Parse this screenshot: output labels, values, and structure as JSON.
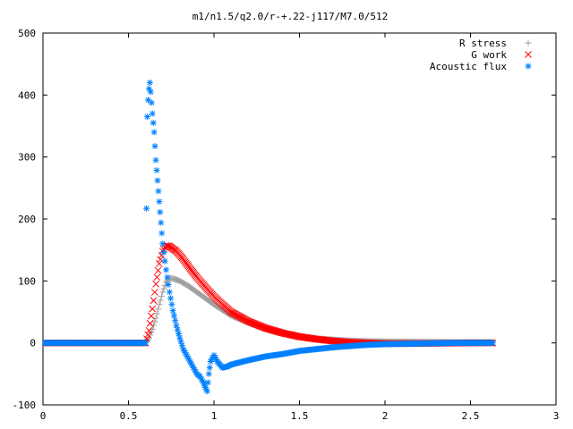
{
  "chart_data": {
    "type": "scatter",
    "title": "m1/n1.5/q2.0/r-+.22-j117/M7.0/512",
    "xlabel": "",
    "ylabel": "",
    "xlim": [
      0,
      3
    ],
    "ylim": [
      -100,
      500
    ],
    "xticks": [
      0,
      0.5,
      1,
      1.5,
      2,
      2.5,
      3
    ],
    "xtick_labels": [
      "0",
      "0.5",
      "1",
      "1.5",
      "2",
      "2.5",
      "3"
    ],
    "yticks": [
      -100,
      0,
      100,
      200,
      300,
      400,
      500
    ],
    "ytick_labels": [
      "-100",
      "0",
      "100",
      "200",
      "300",
      "400",
      "500"
    ],
    "grid": false,
    "legend_position": "top-right",
    "series": [
      {
        "name": "R stress",
        "marker": "plus",
        "color": "#a0a0a0",
        "points": [
          [
            0,
            0
          ],
          [
            0.3,
            0
          ],
          [
            0.58,
            0
          ],
          [
            0.6,
            2
          ],
          [
            0.62,
            8
          ],
          [
            0.64,
            22
          ],
          [
            0.66,
            40
          ],
          [
            0.68,
            62
          ],
          [
            0.7,
            82
          ],
          [
            0.72,
            98
          ],
          [
            0.74,
            104
          ],
          [
            0.76,
            104
          ],
          [
            0.8,
            100
          ],
          [
            0.85,
            92
          ],
          [
            0.9,
            82
          ],
          [
            0.95,
            72
          ],
          [
            1.0,
            62
          ],
          [
            1.05,
            53
          ],
          [
            1.1,
            44
          ],
          [
            1.2,
            33
          ],
          [
            1.3,
            23
          ],
          [
            1.4,
            16
          ],
          [
            1.5,
            11
          ],
          [
            1.6,
            7
          ],
          [
            1.7,
            5
          ],
          [
            1.8,
            3.5
          ],
          [
            1.9,
            2.5
          ],
          [
            2.0,
            2
          ],
          [
            2.2,
            1.5
          ],
          [
            2.4,
            1
          ],
          [
            2.63,
            1
          ]
        ]
      },
      {
        "name": "G work",
        "marker": "cross",
        "color": "#ff0000",
        "points": [
          [
            0,
            0
          ],
          [
            0.3,
            0
          ],
          [
            0.6,
            0
          ],
          [
            0.62,
            20
          ],
          [
            0.64,
            55
          ],
          [
            0.66,
            95
          ],
          [
            0.68,
            128
          ],
          [
            0.7,
            148
          ],
          [
            0.72,
            157
          ],
          [
            0.74,
            156
          ],
          [
            0.78,
            148
          ],
          [
            0.82,
            135
          ],
          [
            0.86,
            120
          ],
          [
            0.9,
            106
          ],
          [
            0.95,
            90
          ],
          [
            1.0,
            75
          ],
          [
            1.05,
            62
          ],
          [
            1.1,
            50
          ],
          [
            1.2,
            35
          ],
          [
            1.3,
            24
          ],
          [
            1.4,
            16
          ],
          [
            1.5,
            10
          ],
          [
            1.6,
            6
          ],
          [
            1.7,
            3
          ],
          [
            1.8,
            1
          ],
          [
            1.9,
            0
          ],
          [
            2.0,
            -1
          ],
          [
            2.2,
            -1
          ],
          [
            2.5,
            0
          ],
          [
            2.63,
            0
          ]
        ]
      },
      {
        "name": "Acoustic flux",
        "marker": "star",
        "color": "#0080ff",
        "points": [
          [
            0,
            0
          ],
          [
            0.3,
            0
          ],
          [
            0.59,
            0
          ],
          [
            0.6,
            0
          ],
          [
            0.605,
            217
          ],
          [
            0.61,
            365
          ],
          [
            0.615,
            392
          ],
          [
            0.62,
            410
          ],
          [
            0.625,
            420
          ],
          [
            0.63,
            405
          ],
          [
            0.64,
            370
          ],
          [
            0.65,
            340
          ],
          [
            0.66,
            295
          ],
          [
            0.67,
            262
          ],
          [
            0.68,
            228
          ],
          [
            0.69,
            194
          ],
          [
            0.7,
            160
          ],
          [
            0.72,
            118
          ],
          [
            0.74,
            82
          ],
          [
            0.76,
            52
          ],
          [
            0.78,
            28
          ],
          [
            0.8,
            8
          ],
          [
            0.82,
            -10
          ],
          [
            0.85,
            -25
          ],
          [
            0.88,
            -40
          ],
          [
            0.9,
            -50
          ],
          [
            0.92,
            -55
          ],
          [
            0.94,
            -65
          ],
          [
            0.95,
            -72
          ],
          [
            0.96,
            -78
          ],
          [
            0.97,
            -50
          ],
          [
            0.98,
            -30
          ],
          [
            1.0,
            -20
          ],
          [
            1.02,
            -30
          ],
          [
            1.05,
            -40
          ],
          [
            1.08,
            -38
          ],
          [
            1.1,
            -35
          ],
          [
            1.2,
            -28
          ],
          [
            1.3,
            -22
          ],
          [
            1.4,
            -18
          ],
          [
            1.5,
            -13
          ],
          [
            1.6,
            -10
          ],
          [
            1.7,
            -7
          ],
          [
            1.8,
            -5
          ],
          [
            1.9,
            -3
          ],
          [
            2.0,
            -2
          ],
          [
            2.2,
            -1
          ],
          [
            2.4,
            0
          ],
          [
            2.63,
            0
          ]
        ]
      }
    ]
  }
}
